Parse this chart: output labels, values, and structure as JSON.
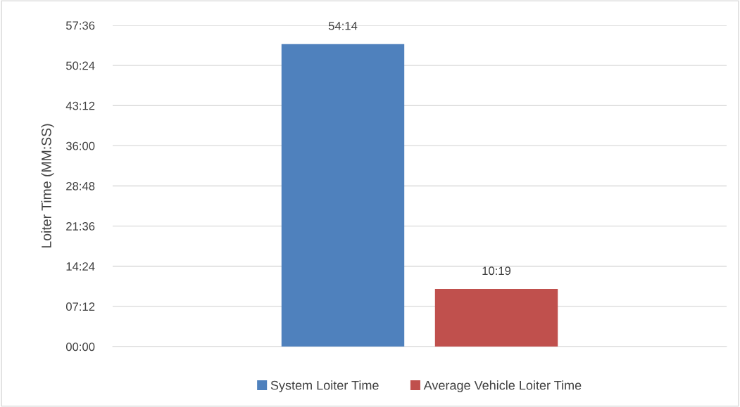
{
  "chart_data": {
    "type": "bar",
    "ylabel": "Loiter Time (MM:SS)",
    "categories": [
      null
    ],
    "series": [
      {
        "name": "System Loiter Time",
        "color": "#4f81bd",
        "values": [
          54.23
        ],
        "value_labels": [
          "54:14"
        ]
      },
      {
        "name": "Average Vehicle Loiter Time",
        "color": "#c0504d",
        "values": [
          10.32
        ],
        "value_labels": [
          "10:19"
        ]
      }
    ],
    "ylim": [
      0,
      57.6
    ],
    "yticks": [
      {
        "value": 0,
        "label": "00:00"
      },
      {
        "value": 7.2,
        "label": "07:12"
      },
      {
        "value": 14.4,
        "label": "14:24"
      },
      {
        "value": 21.6,
        "label": "21:36"
      },
      {
        "value": 28.8,
        "label": "28:48"
      },
      {
        "value": 36,
        "label": "36:00"
      },
      {
        "value": 43.2,
        "label": "43:12"
      },
      {
        "value": 50.4,
        "label": "50:24"
      },
      {
        "value": 57.6,
        "label": "57:36"
      }
    ],
    "grid": "y",
    "legend": "bottom"
  }
}
